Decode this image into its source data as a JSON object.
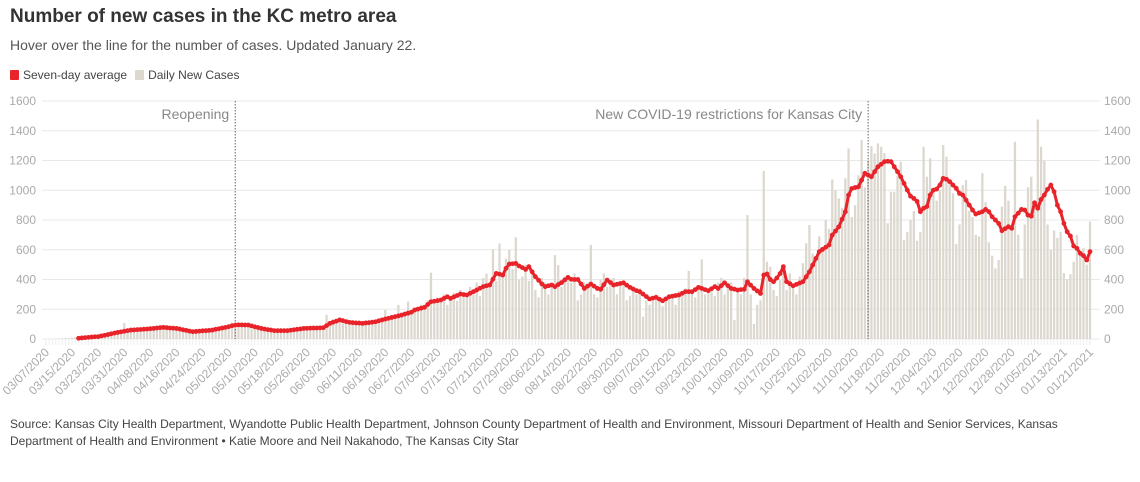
{
  "header": {
    "title": "Number of new cases in the KC metro area",
    "subtitle": "Hover over the line for the number of cases. Updated January 22."
  },
  "legend": [
    {
      "label": "Seven-day average",
      "color": "#e8232a"
    },
    {
      "label": "Daily New Cases",
      "color": "#dcd8cf"
    }
  ],
  "source": "Source: Kansas City Health Department, Wyandotte Public Health Department, Johnson County Department of Health and Environment, Missouri Department of Health and Senior Services, Kansas Department of Health and Environment • Katie Moore and Neil Nakahodo, The Kansas City Star",
  "chart_data": {
    "type": "bar+line",
    "x_first_date": "03/07/2020",
    "x_step": "1 day",
    "ylim": [
      0,
      1600
    ],
    "yticks": [
      0,
      200,
      400,
      600,
      800,
      1000,
      1200,
      1400,
      1600
    ],
    "y_axes": "left and right",
    "grid": true,
    "legend_placement": "top-left",
    "xtick_labels": [
      "03/07/2020",
      "03/15/2020",
      "03/23/2020",
      "03/31/2020",
      "04/08/2020",
      "04/16/2020",
      "04/24/2020",
      "05/02/2020",
      "05/10/2020",
      "05/18/2020",
      "05/26/2020",
      "06/03/2020",
      "06/11/2020",
      "06/19/2020",
      "06/27/2020",
      "07/05/2020",
      "07/13/2020",
      "07/21/2020",
      "07/29/2020",
      "08/06/2020",
      "08/14/2020",
      "08/22/2020",
      "08/30/2020",
      "09/07/2020",
      "09/15/2020",
      "09/23/2020",
      "10/01/2020",
      "10/09/2020",
      "10/17/2020",
      "10/25/2020",
      "11/02/2020",
      "11/10/2020",
      "11/18/2020",
      "11/26/2020",
      "12/04/2020",
      "12/12/2020",
      "12/20/2020",
      "12/28/2020",
      "01/05/2021",
      "01/13/2021",
      "01/21/2021"
    ],
    "annotations": [
      {
        "label": "Reopening",
        "date": "05/04/2020"
      },
      {
        "label": "New COVID-19 restrictions for Kansas City",
        "date": "11/14/2020"
      }
    ],
    "series": [
      {
        "name": "Daily New Cases",
        "type": "bar",
        "color": "#dcd8cf",
        "values": [
          0,
          1,
          0,
          2,
          3,
          4,
          6,
          5,
          9,
          12,
          8,
          10,
          14,
          12,
          18,
          22,
          20,
          28,
          33,
          30,
          42,
          38,
          55,
          48,
          108,
          52,
          70,
          58,
          64,
          75,
          72,
          60,
          88,
          68,
          80,
          92,
          70,
          85,
          78,
          66,
          80,
          60,
          55,
          48,
          52,
          45,
          58,
          50,
          62,
          48,
          70,
          55,
          68,
          82,
          60,
          90,
          75,
          110,
          92,
          80,
          105,
          98,
          88,
          70,
          90,
          62,
          80,
          58,
          65,
          48,
          60,
          50,
          62,
          55,
          58,
          70,
          62,
          75,
          66,
          80,
          72,
          78,
          68,
          80,
          75,
          90,
          163,
          110,
          130,
          118,
          140,
          105,
          120,
          98,
          115,
          100,
          110,
          92,
          120,
          105,
          125,
          110,
          140,
          128,
          195,
          135,
          160,
          150,
          229,
          158,
          180,
          251,
          170,
          210,
          195,
          230,
          205,
          260,
          446,
          240,
          280,
          250,
          300,
          230,
          270,
          310,
          255,
          330,
          290,
          280,
          350,
          300,
          380,
          290,
          410,
          440,
          360,
          602,
          390,
          643,
          430,
          540,
          600,
          470,
          683,
          400,
          420,
          500,
          390,
          440,
          330,
          280,
          410,
          380,
          300,
          360,
          564,
          497,
          350,
          420,
          420,
          380,
          440,
          260,
          300,
          380,
          350,
          632,
          300,
          280,
          400,
          440,
          350,
          380,
          410,
          300,
          360,
          380,
          260,
          290,
          330,
          300,
          340,
          150,
          260,
          230,
          280,
          300,
          250,
          220,
          260,
          300,
          290,
          230,
          320,
          300,
          340,
          457,
          310,
          280,
          360,
          535,
          300,
          320,
          350,
          290,
          380,
          410,
          300,
          360,
          380,
          128,
          340,
          300,
          410,
          833,
          300,
          101,
          230,
          260,
          1130,
          520,
          486,
          330,
          290,
          396,
          480,
          330,
          441,
          360,
          300,
          420,
          510,
          643,
          766,
          575,
          540,
          690,
          620,
          800,
          740,
          1072,
          1001,
          945,
          880,
          1080,
          1281,
          820,
          900,
          1100,
          1337,
          1020,
          1200,
          1297,
          1247,
          1315,
          1292,
          1250,
          778,
          990,
          990,
          1100,
          1192,
          665,
          720,
          800,
          860,
          660,
          720,
          1293,
          1091,
          1215,
          1000,
          930,
          1000,
          1304,
          1226,
          1068,
          980,
          640,
          770,
          1035,
          1068,
          860,
          820,
          700,
          690,
          1115,
          920,
          650,
          560,
          475,
          530,
          890,
          1030,
          930,
          760,
          1326,
          700,
          408,
          770,
          1020,
          1091,
          900,
          1476,
          1293,
          1200,
          770,
          600,
          730,
          680,
          720,
          443,
          401,
          436,
          520,
          700,
          580,
          610,
          500,
          790
        ]
      },
      {
        "name": "Seven-day average",
        "type": "line",
        "color": "#e8232a",
        "values": [
          null,
          null,
          null,
          null,
          null,
          null,
          null,
          null,
          null,
          null,
          5,
          7,
          9,
          11,
          13,
          15,
          16,
          21,
          25,
          30,
          35,
          40,
          44,
          48,
          52,
          56,
          60,
          61,
          63,
          64,
          66,
          67,
          69,
          71,
          74,
          76,
          78,
          76,
          74,
          73,
          71,
          67,
          62,
          58,
          53,
          49,
          51,
          53,
          55,
          56,
          58,
          60,
          65,
          69,
          74,
          78,
          83,
          89,
          94,
          95,
          95,
          94,
          94,
          88,
          82,
          77,
          71,
          67,
          63,
          60,
          56,
          56,
          56,
          56,
          56,
          59,
          62,
          65,
          68,
          71,
          72,
          73,
          74,
          74,
          75,
          76,
          90,
          105,
          113,
          120,
          128,
          123,
          117,
          112,
          110,
          108,
          107,
          105,
          108,
          110,
          113,
          116,
          122,
          128,
          134,
          139,
          145,
          150,
          155,
          161,
          168,
          174,
          180,
          195,
          201,
          207,
          213,
          232,
          250,
          254,
          258,
          262,
          273,
          284,
          273,
          283,
          292,
          302,
          299,
          296,
          307,
          318,
          329,
          341,
          352,
          358,
          363,
          402,
          441,
          436,
          430,
          475,
          504,
          506,
          508,
          491,
          480,
          468,
          486,
          452,
          419,
          395,
          370,
          352,
          358,
          363,
          352,
          366,
          379,
          397,
          414,
          401,
          400,
          400,
          370,
          340,
          355,
          369,
          355,
          340,
          334,
          365,
          396,
          380,
          363,
          368,
          373,
          378,
          362,
          347,
          336,
          325,
          318,
          302,
          285,
          269,
          275,
          280,
          268,
          257,
          270,
          284,
          288,
          292,
          296,
          307,
          318,
          318,
          318,
          332,
          347,
          340,
          332,
          325,
          338,
          352,
          340,
          359,
          378,
          359,
          340,
          335,
          329,
          332,
          334,
          385,
          362,
          340,
          323,
          306,
          430,
          437,
          400,
          385,
          410,
          440,
          486,
          385,
          372,
          358,
          367,
          376,
          385,
          418,
          452,
          497,
          542,
          587,
          602,
          617,
          632,
          699,
          726,
          754,
          805,
          855,
          968,
          1012,
          1018,
          1023,
          1068,
          1114,
          1102,
          1091,
          1125,
          1158,
          1175,
          1192,
          1195,
          1192,
          1158,
          1125,
          1091,
          1046,
          1001,
          960,
          945,
          925,
          856,
          879,
          890,
          968,
          1001,
          1008,
          1035,
          1080,
          1074,
          1058,
          1035,
          1013,
          979,
          968,
          934,
          900,
          867,
          840,
          848,
          856,
          871,
          856,
          822,
          800,
          777,
          728,
          742,
          755,
          744,
          822,
          846,
          871,
          867,
          833,
          826,
          916,
          879,
          938,
          968,
          1006,
          1035,
          990,
          900,
          856,
          777,
          721,
          692,
          625,
          609,
          576,
          560,
          531,
          587
        ]
      }
    ]
  }
}
